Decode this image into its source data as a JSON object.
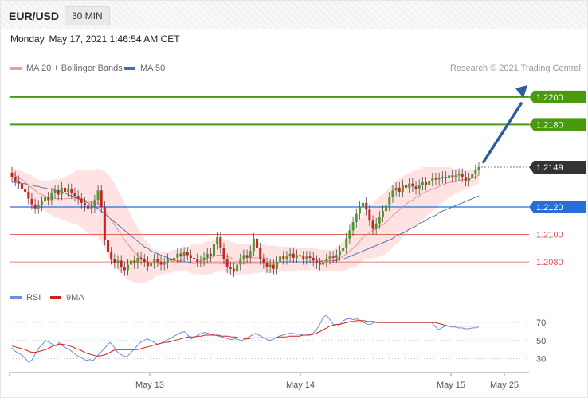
{
  "header": {
    "symbol": "EUR/USD",
    "interval": "30 MIN",
    "datetime": "Monday, May 17, 2021 1:46:54 AM CET"
  },
  "legend": {
    "ma20": "MA 20 + Bollinger Bands",
    "ma50": "MA 50",
    "rsi": "RSI",
    "ma9": "9MA"
  },
  "copyright": "Research © 2021 Trading Central",
  "colors": {
    "green": "#4a9a0e",
    "blue": "#2a6dd6",
    "red": "#e05050",
    "candle_up": "#4c9a2a",
    "candle_down": "#cc2222",
    "band": "#ffdada",
    "ma50": "#3f6fb0",
    "arrow": "#2e5e9e"
  },
  "chart_data": [
    {
      "type": "candlestick",
      "title": "EUR/USD 30 MIN",
      "ylim": [
        1.2065,
        1.2215
      ],
      "x_labels": [
        "May 13",
        "May 14",
        "May 15",
        "May 25"
      ],
      "levels": [
        {
          "value": 1.22,
          "label": "1.2200",
          "kind": "resistance-target"
        },
        {
          "value": 1.218,
          "label": "1.2180",
          "kind": "resistance"
        },
        {
          "value": 1.2149,
          "label": "1.2149",
          "kind": "last-price"
        },
        {
          "value": 1.212,
          "label": "1.2120",
          "kind": "pivot"
        },
        {
          "value": 1.21,
          "label": "1.2100",
          "kind": "support"
        },
        {
          "value": 1.208,
          "label": "1.2080",
          "kind": "support"
        }
      ],
      "close": [
        1.2142,
        1.2139,
        1.2137,
        1.2133,
        1.2131,
        1.2126,
        1.2122,
        1.2119,
        1.2121,
        1.2124,
        1.2127,
        1.2125,
        1.213,
        1.2132,
        1.2129,
        1.2134,
        1.2131,
        1.2133,
        1.213,
        1.2128,
        1.2126,
        1.2123,
        1.2121,
        1.2119,
        1.212,
        1.2125,
        1.2132,
        1.212,
        1.2096,
        1.2087,
        1.2082,
        1.2079,
        1.2081,
        1.2076,
        1.2074,
        1.2078,
        1.2081,
        1.2079,
        1.2083,
        1.2082,
        1.208,
        1.2077,
        1.2079,
        1.2082,
        1.208,
        1.2078,
        1.2079,
        1.2082,
        1.2081,
        1.2083,
        1.2086,
        1.2084,
        1.2087,
        1.2085,
        1.2083,
        1.2082,
        1.208,
        1.2081,
        1.2083,
        1.2086,
        1.2084,
        1.2093,
        1.2098,
        1.209,
        1.2082,
        1.2076,
        1.2075,
        1.2073,
        1.2078,
        1.2082,
        1.2085,
        1.2083,
        1.2088,
        1.2097,
        1.209,
        1.2082,
        1.2079,
        1.2076,
        1.2078,
        1.2075,
        1.208,
        1.2084,
        1.2082,
        1.2084,
        1.2086,
        1.2083,
        1.2085,
        1.2084,
        1.2082,
        1.2084,
        1.2083,
        1.2081,
        1.2079,
        1.2078,
        1.208,
        1.2082,
        1.2084,
        1.2083,
        1.2085,
        1.2088,
        1.209,
        1.2097,
        1.2103,
        1.2109,
        1.2115,
        1.212,
        1.2123,
        1.2118,
        1.211,
        1.2104,
        1.2108,
        1.2113,
        1.2117,
        1.2121,
        1.2127,
        1.2132,
        1.2134,
        1.2131,
        1.2136,
        1.2134,
        1.2137,
        1.2135,
        1.2133,
        1.2136,
        1.2138,
        1.2136,
        1.2139,
        1.2141,
        1.214,
        1.2141,
        1.2142,
        1.2141,
        1.2143,
        1.2142,
        1.2143,
        1.2144,
        1.2142,
        1.2139,
        1.2141,
        1.2144,
        1.2147,
        1.2149
      ],
      "ma20": [
        1.2145,
        1.2143,
        1.2141,
        1.214,
        1.2138,
        1.2136,
        1.2134,
        1.2132,
        1.213,
        1.2129,
        1.2128,
        1.2127,
        1.2127,
        1.2126,
        1.2126,
        1.2126,
        1.2126,
        1.2126,
        1.2126,
        1.2127,
        1.2127,
        1.2126,
        1.2125,
        1.2124,
        1.2123,
        1.2123,
        1.2123,
        1.2121,
        1.2118,
        1.2114,
        1.211,
        1.2107,
        1.2103,
        1.21,
        1.2096,
        1.2093,
        1.209,
        1.2087,
        1.2085,
        1.2083,
        1.2081,
        1.208,
        1.2079,
        1.2079,
        1.2079,
        1.2079,
        1.2079,
        1.208,
        1.208,
        1.2081,
        1.2081,
        1.2081,
        1.2082,
        1.2082,
        1.2082,
        1.2082,
        1.2082,
        1.2082,
        1.2082,
        1.2083,
        1.2083,
        1.2084,
        1.2085,
        1.2085,
        1.2085,
        1.2084,
        1.2083,
        1.2082,
        1.2082,
        1.2082,
        1.2082,
        1.2082,
        1.2082,
        1.2083,
        1.2083,
        1.2083,
        1.2083,
        1.2082,
        1.2082,
        1.2082,
        1.2082,
        1.2082,
        1.2082,
        1.2082,
        1.2082,
        1.2082,
        1.2082,
        1.2082,
        1.2082,
        1.2082,
        1.2082,
        1.2082,
        1.2082,
        1.2081,
        1.2081,
        1.2081,
        1.2081,
        1.2081,
        1.2082,
        1.2083,
        1.2084,
        1.2086,
        1.2088,
        1.209,
        1.2092,
        1.2095,
        1.2098,
        1.21,
        1.2101,
        1.2103,
        1.2104,
        1.2106,
        1.2107,
        1.2109,
        1.2111,
        1.2114,
        1.2116,
        1.2118,
        1.212,
        1.2122,
        1.2124,
        1.2125,
        1.2127,
        1.2128,
        1.213,
        1.2131,
        1.2132,
        1.2133,
        1.2134,
        1.2135,
        1.2136,
        1.2137,
        1.2138,
        1.2138,
        1.2139,
        1.2139,
        1.214,
        1.214,
        1.214,
        1.2141,
        1.2142,
        1.2143
      ],
      "ma50": [
        1.2138,
        1.2138,
        1.2138,
        1.2137,
        1.2137,
        1.2136,
        1.2136,
        1.2135,
        1.2135,
        1.2134,
        1.2134,
        1.2133,
        1.2133,
        1.2132,
        1.2132,
        1.2131,
        1.213,
        1.2129,
        1.2128,
        1.2127,
        1.2126,
        1.2125,
        1.2124,
        1.2123,
        1.2121,
        1.212,
        1.2119,
        1.2117,
        1.2115,
        1.2113,
        1.2111,
        1.2109,
        1.2107,
        1.2105,
        1.2103,
        1.2101,
        1.2099,
        1.2097,
        1.2095,
        1.2093,
        1.2091,
        1.209,
        1.2088,
        1.2087,
        1.2086,
        1.2085,
        1.2084,
        1.2083,
        1.2082,
        1.2081,
        1.2081,
        1.208,
        1.208,
        1.208,
        1.2079,
        1.2079,
        1.2079,
        1.2079,
        1.2079,
        1.2079,
        1.2079,
        1.2079,
        1.2079,
        1.2079,
        1.2079,
        1.2079,
        1.2079,
        1.2079,
        1.2079,
        1.2079,
        1.2079,
        1.2079,
        1.2079,
        1.2079,
        1.2079,
        1.2079,
        1.2079,
        1.2079,
        1.2079,
        1.2079,
        1.2079,
        1.2079,
        1.208,
        1.208,
        1.208,
        1.208,
        1.208,
        1.208,
        1.208,
        1.208,
        1.208,
        1.208,
        1.208,
        1.208,
        1.2081,
        1.2081,
        1.2081,
        1.2081,
        1.2081,
        1.2082,
        1.2082,
        1.2083,
        1.2084,
        1.2085,
        1.2086,
        1.2087,
        1.2088,
        1.2089,
        1.209,
        1.2091,
        1.2092,
        1.2093,
        1.2094,
        1.2095,
        1.2096,
        1.2097,
        1.2099,
        1.21,
        1.2101,
        1.2102,
        1.2104,
        1.2105,
        1.2106,
        1.2108,
        1.2109,
        1.211,
        1.2112,
        1.2113,
        1.2114,
        1.2116,
        1.2117,
        1.2118,
        1.2119,
        1.212,
        1.2121,
        1.2122,
        1.2123,
        1.2124,
        1.2125,
        1.2126,
        1.2127,
        1.2128
      ],
      "band_width": [
        0.0005,
        0.0005,
        0.0006,
        0.0006,
        0.0007,
        0.0008,
        0.0009,
        0.0009,
        0.001,
        0.001,
        0.0011,
        0.0012,
        0.0013,
        0.0014,
        0.0014,
        0.0015,
        0.0016,
        0.0017,
        0.0018,
        0.0019,
        0.002,
        0.0021,
        0.0022,
        0.0023,
        0.0024,
        0.0024,
        0.0025,
        0.0026,
        0.0028,
        0.003,
        0.0031,
        0.003,
        0.0029,
        0.0028,
        0.0027,
        0.0026,
        0.0024,
        0.0022,
        0.002,
        0.0018,
        0.0016,
        0.0014,
        0.0012,
        0.001,
        0.0009,
        0.0008,
        0.0008,
        0.0008,
        0.0008,
        0.0008,
        0.0008,
        0.0008,
        0.0008,
        0.0009,
        0.001,
        0.0011,
        0.0011,
        0.0011,
        0.0012,
        0.0012,
        0.0012,
        0.0012,
        0.0012,
        0.0012,
        0.0012,
        0.0012,
        0.0012,
        0.0012,
        0.0012,
        0.0011,
        0.0011,
        0.0011,
        0.0011,
        0.0011,
        0.0011,
        0.0011,
        0.001,
        0.001,
        0.001,
        0.001,
        0.001,
        0.0009,
        0.0009,
        0.0009,
        0.0009,
        0.0009,
        0.0008,
        0.0008,
        0.0008,
        0.0008,
        0.0008,
        0.0008,
        0.0008,
        0.0008,
        0.0008,
        0.0008,
        0.0008,
        0.0008,
        0.0009,
        0.001,
        0.0011,
        0.0012,
        0.0013,
        0.0014,
        0.0015,
        0.0016,
        0.0017,
        0.0018,
        0.0019,
        0.002,
        0.0021,
        0.0022,
        0.0022,
        0.0023,
        0.0023,
        0.0023,
        0.0023,
        0.0023,
        0.0022,
        0.0022,
        0.0021,
        0.0021,
        0.002,
        0.0019,
        0.0019,
        0.0018,
        0.0017,
        0.0016,
        0.0015,
        0.0014,
        0.0013,
        0.0012,
        0.0011,
        0.001,
        0.0009,
        0.0008,
        0.0008,
        0.0007,
        0.0007,
        0.0006,
        0.0006,
        0.0006,
        0.0006,
        0.0006
      ]
    },
    {
      "type": "line",
      "title": "RSI",
      "ylim": [
        20,
        85
      ],
      "y_ticks": [
        30,
        50,
        70
      ],
      "series": [
        {
          "name": "RSI",
          "values": [
            42,
            38,
            36,
            34,
            30,
            26,
            29,
            36,
            42,
            46,
            50,
            48,
            46,
            44,
            48,
            44,
            42,
            40,
            37,
            34,
            32,
            30,
            28,
            29,
            28,
            32,
            36,
            40,
            44,
            48,
            44,
            38,
            35,
            33,
            32,
            36,
            40,
            44,
            48,
            50,
            52,
            50,
            48,
            46,
            47,
            49,
            51,
            53,
            55,
            57,
            59,
            60,
            56,
            52,
            54,
            56,
            58,
            59,
            58,
            57,
            56,
            55,
            54,
            53,
            52,
            51,
            52,
            51,
            50,
            52,
            54,
            56,
            58,
            56,
            54,
            52,
            50,
            51,
            53,
            55,
            56,
            57,
            58,
            58,
            57,
            57,
            56,
            56,
            57,
            58,
            62,
            68,
            76,
            78,
            73,
            68,
            66,
            68,
            72,
            74,
            74,
            73,
            74,
            72,
            70,
            68,
            68,
            70,
            70,
            70,
            70,
            70,
            70,
            70,
            70,
            70,
            70,
            70,
            70,
            70,
            70,
            70,
            70,
            70,
            70,
            66,
            62,
            64,
            66,
            66,
            65,
            65,
            64,
            64,
            63,
            63,
            64,
            64,
            65
          ]
        },
        {
          "name": "9MA",
          "values": [
            44,
            43,
            42,
            41,
            40,
            38,
            37,
            37,
            38,
            39,
            40,
            42,
            44,
            45,
            46,
            46,
            45,
            44,
            43,
            41,
            40,
            38,
            36,
            35,
            34,
            33,
            33,
            34,
            35,
            37,
            39,
            40,
            40,
            40,
            40,
            40,
            40,
            40,
            41,
            42,
            43,
            44,
            45,
            46,
            47,
            48,
            48,
            49,
            50,
            51,
            52,
            53,
            54,
            54,
            54,
            55,
            55,
            56,
            56,
            56,
            56,
            56,
            55,
            55,
            55,
            54,
            54,
            53,
            53,
            52,
            52,
            53,
            53,
            53,
            53,
            53,
            53,
            53,
            53,
            54,
            54,
            54,
            55,
            55,
            55,
            55,
            56,
            56,
            56,
            57,
            58,
            60,
            62,
            64,
            66,
            67,
            68,
            68,
            69,
            70,
            71,
            71,
            72,
            72,
            72,
            71,
            71,
            71,
            70,
            70,
            70,
            70,
            70,
            70,
            70,
            70,
            70,
            70,
            70,
            70,
            70,
            70,
            70,
            70,
            70,
            70,
            69,
            68,
            67,
            66,
            66,
            66,
            66,
            66,
            66,
            66,
            66,
            66,
            66
          ]
        }
      ]
    }
  ]
}
